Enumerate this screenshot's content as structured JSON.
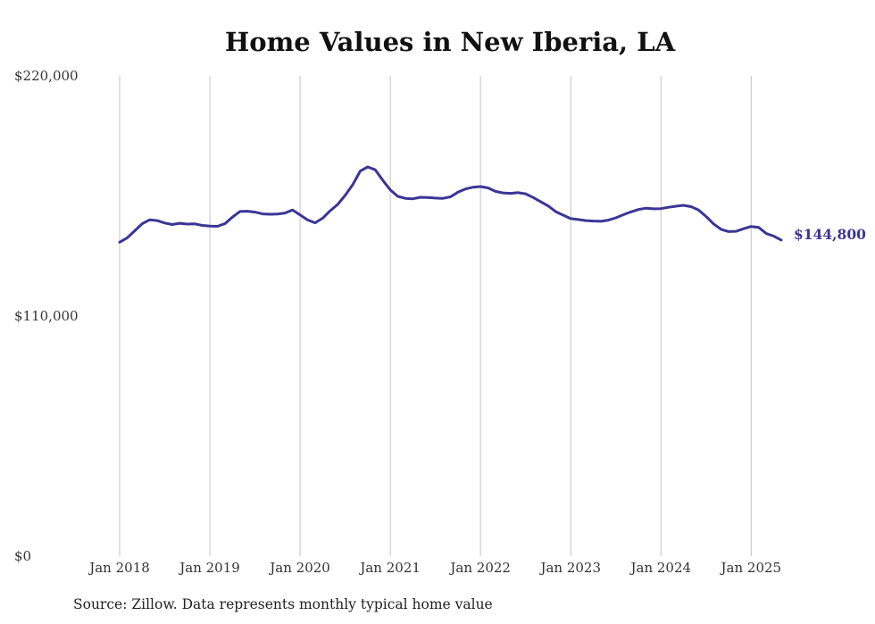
{
  "chart_data": {
    "type": "line",
    "title": "Home Values in New Iberia, LA",
    "xlabel": "",
    "ylabel": "",
    "ylim": [
      0,
      220000
    ],
    "yticks": [
      "$220,000",
      "$110,000",
      "$0"
    ],
    "ytick_values": [
      220000,
      110000,
      0
    ],
    "xticks": [
      "Jan 2018",
      "Jan 2019",
      "Jan 2020",
      "Jan 2021",
      "Jan 2022",
      "Jan 2023",
      "Jan 2024",
      "Jan 2025"
    ],
    "xtick_values": [
      "2018-01",
      "2019-01",
      "2020-01",
      "2021-01",
      "2022-01",
      "2023-01",
      "2024-01",
      "2025-01"
    ],
    "grid": {
      "x": true,
      "y": false
    },
    "line_color": "#3b3596",
    "series": [
      {
        "x": [
          "2018-01",
          "2018-02",
          "2018-03",
          "2018-04",
          "2018-05",
          "2018-06",
          "2018-07",
          "2018-08",
          "2018-09",
          "2018-10",
          "2018-11",
          "2018-12",
          "2019-01",
          "2019-02",
          "2019-03",
          "2019-04",
          "2019-05",
          "2019-06",
          "2019-07",
          "2019-08",
          "2019-09",
          "2019-10",
          "2019-11",
          "2019-12",
          "2020-01",
          "2020-02",
          "2020-03",
          "2020-04",
          "2020-05",
          "2020-06",
          "2020-07",
          "2020-08",
          "2020-09",
          "2020-10",
          "2020-11",
          "2020-12",
          "2021-01",
          "2021-02",
          "2021-03",
          "2021-04",
          "2021-05",
          "2021-06",
          "2021-07",
          "2021-08",
          "2021-09",
          "2021-10",
          "2021-11",
          "2021-12",
          "2022-01",
          "2022-02",
          "2022-03",
          "2022-04",
          "2022-05",
          "2022-06",
          "2022-07",
          "2022-08",
          "2022-09",
          "2022-10",
          "2022-11",
          "2022-12",
          "2023-01",
          "2023-02",
          "2023-03",
          "2023-04",
          "2023-05",
          "2023-06",
          "2023-07",
          "2023-08",
          "2023-09",
          "2023-10",
          "2023-11",
          "2023-12",
          "2024-01",
          "2024-02",
          "2024-03",
          "2024-04",
          "2024-05",
          "2024-06",
          "2024-07",
          "2024-08",
          "2024-09",
          "2024-10",
          "2024-11",
          "2024-12",
          "2025-01",
          "2025-02",
          "2025-03",
          "2025-04",
          "2025-05"
        ],
        "values": [
          143800,
          145800,
          149000,
          152300,
          154100,
          153700,
          152600,
          151900,
          152500,
          152100,
          152200,
          151500,
          151200,
          151100,
          152300,
          155300,
          157900,
          158000,
          157600,
          156800,
          156600,
          156700,
          157200,
          158600,
          156300,
          154000,
          152700,
          154800,
          158200,
          161100,
          165300,
          170100,
          176400,
          178300,
          177000,
          172200,
          167800,
          164800,
          163900,
          163700,
          164400,
          164300,
          164000,
          163900,
          164600,
          166700,
          168200,
          169000,
          169300,
          168700,
          167100,
          166400,
          166200,
          166500,
          166000,
          164300,
          162400,
          160400,
          157800,
          156200,
          154600,
          154200,
          153700,
          153500,
          153400,
          153900,
          155000,
          156400,
          157700,
          158800,
          159400,
          159100,
          159200,
          159800,
          160300,
          160700,
          160100,
          158600,
          155600,
          152200,
          149700,
          148700,
          148800,
          150000,
          151000,
          150600,
          147800,
          146600,
          144800
        ]
      }
    ],
    "end_label": "$144,800",
    "source": "Source: Zillow. Data represents monthly typical home value"
  }
}
